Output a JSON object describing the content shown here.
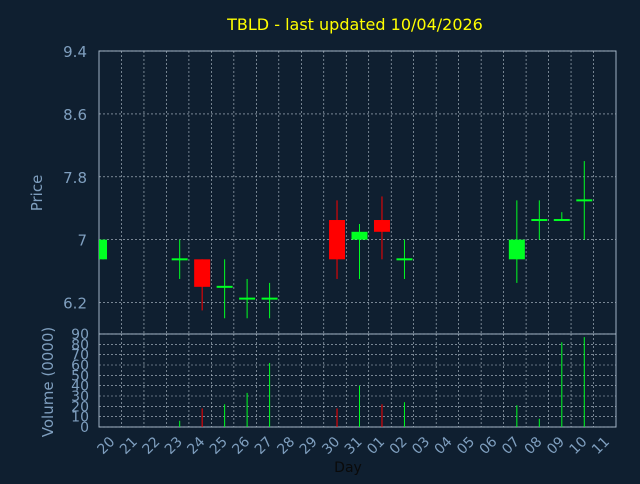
{
  "chart_data": [
    {
      "type": "candlestick",
      "title": "TBLD - last updated 10/04/2026",
      "ylabel": "Price",
      "ylim": [
        5.8,
        9.4
      ],
      "ytick_labels": [
        "9.4",
        "8.6",
        "7.8",
        "7",
        "6.2"
      ],
      "ytick_values": [
        9.4,
        8.6,
        7.8,
        7.0,
        6.2
      ],
      "grid": true,
      "categories": [
        "20",
        "21",
        "22",
        "23",
        "24",
        "25",
        "26",
        "27",
        "28",
        "29",
        "30",
        "31",
        "01",
        "02",
        "03",
        "04",
        "05",
        "06",
        "07",
        "08",
        "09",
        "10",
        "11"
      ],
      "candles": [
        {
          "day": "20",
          "open": 6.75,
          "close": 7.0,
          "high": 7.0,
          "low": 6.75
        },
        {
          "day": "23",
          "open": 6.75,
          "close": 6.75,
          "high": 7.0,
          "low": 6.5
        },
        {
          "day": "24",
          "open": 6.75,
          "close": 6.4,
          "high": 6.75,
          "low": 6.1
        },
        {
          "day": "25",
          "open": 6.4,
          "close": 6.4,
          "high": 6.75,
          "low": 6.0
        },
        {
          "day": "26",
          "open": 6.25,
          "close": 6.25,
          "high": 6.5,
          "low": 6.0
        },
        {
          "day": "27",
          "open": 6.25,
          "close": 6.25,
          "high": 6.45,
          "low": 6.0
        },
        {
          "day": "30",
          "open": 7.25,
          "close": 6.75,
          "high": 7.5,
          "low": 6.5
        },
        {
          "day": "31",
          "open": 7.0,
          "close": 7.1,
          "high": 7.2,
          "low": 6.5
        },
        {
          "day": "01",
          "open": 7.25,
          "close": 7.1,
          "high": 7.55,
          "low": 6.75
        },
        {
          "day": "02",
          "open": 6.75,
          "close": 6.75,
          "high": 7.0,
          "low": 6.5
        },
        {
          "day": "07",
          "open": 6.75,
          "close": 7.0,
          "high": 7.5,
          "low": 6.45
        },
        {
          "day": "08",
          "open": 7.25,
          "close": 7.25,
          "high": 7.5,
          "low": 7.0
        },
        {
          "day": "09",
          "open": 7.25,
          "close": 7.25,
          "high": 7.35,
          "low": 7.25
        },
        {
          "day": "10",
          "open": 7.5,
          "close": 7.5,
          "high": 8.0,
          "low": 7.0
        }
      ]
    },
    {
      "type": "bar",
      "ylabel": "Volume (0000)",
      "xlabel": "Day",
      "ylim": [
        0,
        90
      ],
      "ytick_labels": [
        "90",
        "80",
        "70",
        "60",
        "50",
        "40",
        "30",
        "20",
        "10",
        "0"
      ],
      "ytick_values": [
        90,
        80,
        70,
        60,
        50,
        40,
        30,
        20,
        10,
        0
      ],
      "grid": true,
      "categories": [
        "20",
        "21",
        "22",
        "23",
        "24",
        "25",
        "26",
        "27",
        "28",
        "29",
        "30",
        "31",
        "01",
        "02",
        "03",
        "04",
        "05",
        "06",
        "07",
        "08",
        "09",
        "10",
        "11"
      ],
      "values": [
        {
          "day": "23",
          "volume": 6,
          "direction": "up"
        },
        {
          "day": "24",
          "volume": 18,
          "direction": "down"
        },
        {
          "day": "25",
          "volume": 22,
          "direction": "up"
        },
        {
          "day": "26",
          "volume": 33,
          "direction": "up"
        },
        {
          "day": "27",
          "volume": 62,
          "direction": "up"
        },
        {
          "day": "30",
          "volume": 18,
          "direction": "down"
        },
        {
          "day": "31",
          "volume": 40,
          "direction": "up"
        },
        {
          "day": "01",
          "volume": 22,
          "direction": "down"
        },
        {
          "day": "02",
          "volume": 24,
          "direction": "up"
        },
        {
          "day": "07",
          "volume": 21,
          "direction": "up"
        },
        {
          "day": "08",
          "volume": 8,
          "direction": "up"
        },
        {
          "day": "09",
          "volume": 82,
          "direction": "up"
        },
        {
          "day": "10",
          "volume": 87,
          "direction": "up"
        }
      ]
    }
  ],
  "colors": {
    "background": "#0f1f30",
    "title": "#ffff00",
    "axis_text": "#7f9fbf",
    "up": "#00ff22",
    "down": "#ff0000",
    "grid": "#b8c4cf",
    "frame": "#9fb2c5"
  }
}
